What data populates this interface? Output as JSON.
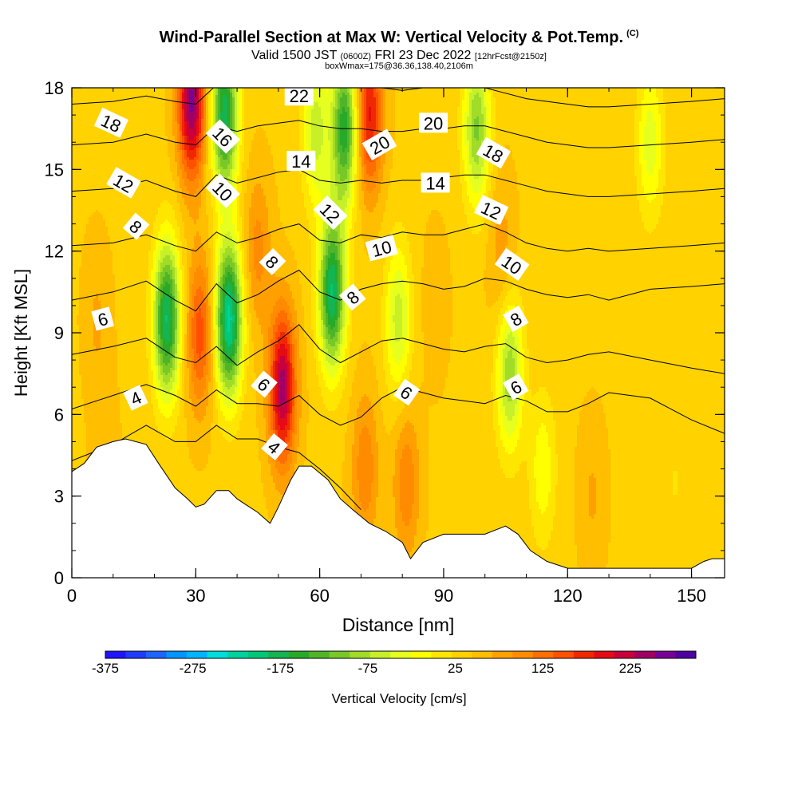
{
  "chart_data": {
    "type": "heatmap",
    "title": "Wind-Parallel Section at Max W: Vertical Velocity & Pot.Temp.",
    "title_mark": "(C)",
    "subtitle": {
      "valid": "Valid 1500 JST",
      "utc": "(0600Z)",
      "date": "FRI 23 Dec 2022",
      "forecast": "[12hrFcst@2150z]"
    },
    "note": "boxWmax=175@36.36,138.40,2106m",
    "xlabel": "Distance [nm]",
    "ylabel": "Height [Kft MSL]",
    "xlim": [
      0,
      158
    ],
    "ylim": [
      0,
      18
    ],
    "xticks": [
      0,
      30,
      60,
      90,
      120,
      150
    ],
    "yticks": [
      0,
      3,
      6,
      9,
      12,
      15,
      18
    ],
    "colorbar": {
      "label": "Vertical Velocity [cm/s]",
      "tick_labels": [
        "-375",
        "-275",
        "-175",
        "-75",
        "25",
        "125",
        "225"
      ],
      "tick_values": [
        -375,
        -275,
        -175,
        -75,
        25,
        125,
        225
      ],
      "range": [
        -375,
        300
      ],
      "colors": [
        "#1e14ff",
        "#1e3cff",
        "#1e64ff",
        "#0096ff",
        "#00b4ff",
        "#00dcdc",
        "#00d2a0",
        "#00c878",
        "#14b450",
        "#28aa28",
        "#50b428",
        "#78c828",
        "#a0dc28",
        "#c8f028",
        "#e6ff1e",
        "#ffff00",
        "#ffe600",
        "#ffd200",
        "#ffbe00",
        "#ffa000",
        "#ff8c00",
        "#ff6e00",
        "#ff5000",
        "#f02800",
        "#e60a14",
        "#c8003c",
        "#a00064",
        "#780096",
        "#5000a0"
      ]
    },
    "terrain": {
      "distance_nm": [
        0,
        3,
        6,
        10,
        13,
        18,
        21,
        25,
        28,
        30,
        32,
        35,
        38,
        40,
        42,
        45,
        48,
        50,
        53,
        55,
        58,
        62,
        65,
        68,
        72,
        76,
        80,
        82,
        85,
        90,
        95,
        100,
        105,
        108,
        111,
        115,
        120,
        130,
        140,
        150,
        153,
        155,
        158
      ],
      "height_kft": [
        3.9,
        4.2,
        4.8,
        5.0,
        5.1,
        4.9,
        4.2,
        3.3,
        2.9,
        2.6,
        2.7,
        3.2,
        3.2,
        2.9,
        2.7,
        2.4,
        2.0,
        2.6,
        3.6,
        4.1,
        4.1,
        3.6,
        2.9,
        2.5,
        2.0,
        1.7,
        1.3,
        0.7,
        1.3,
        1.6,
        1.6,
        1.6,
        1.9,
        1.6,
        1.0,
        0.6,
        0.35,
        0.35,
        0.35,
        0.35,
        0.6,
        0.7,
        0.7
      ]
    },
    "w_features": [
      {
        "distance_nm": 6,
        "height_kft": 9.5,
        "w": 70
      },
      {
        "distance_nm": 8,
        "height_kft": 4.5,
        "w": 60
      },
      {
        "distance_nm": 16,
        "height_kft": 16.5,
        "w": 30
      },
      {
        "distance_nm": 23,
        "height_kft": 9.5,
        "w": -190
      },
      {
        "distance_nm": 29,
        "height_kft": 17.5,
        "w": 260
      },
      {
        "distance_nm": 31,
        "height_kft": 9.0,
        "w": 150
      },
      {
        "distance_nm": 38,
        "height_kft": 9.5,
        "w": -220
      },
      {
        "distance_nm": 37,
        "height_kft": 17.0,
        "w": -180
      },
      {
        "distance_nm": 45,
        "height_kft": 12.0,
        "w": 100
      },
      {
        "distance_nm": 51,
        "height_kft": 7.0,
        "w": 240
      },
      {
        "distance_nm": 59,
        "height_kft": 16.5,
        "w": -60
      },
      {
        "distance_nm": 63,
        "height_kft": 10.5,
        "w": -190
      },
      {
        "distance_nm": 66,
        "height_kft": 16.5,
        "w": -160
      },
      {
        "distance_nm": 72,
        "height_kft": 17.0,
        "w": 190
      },
      {
        "distance_nm": 71,
        "height_kft": 4.0,
        "w": 110
      },
      {
        "distance_nm": 79,
        "height_kft": 9.5,
        "w": -60
      },
      {
        "distance_nm": 81,
        "height_kft": 3.5,
        "w": 110
      },
      {
        "distance_nm": 88,
        "height_kft": 10.0,
        "w": 60
      },
      {
        "distance_nm": 98,
        "height_kft": 16.5,
        "w": -100
      },
      {
        "distance_nm": 104,
        "height_kft": 12.0,
        "w": 80
      },
      {
        "distance_nm": 106,
        "height_kft": 7.5,
        "w": -90
      },
      {
        "distance_nm": 114,
        "height_kft": 4.0,
        "w": -20
      },
      {
        "distance_nm": 126,
        "height_kft": 3.0,
        "w": 70
      },
      {
        "distance_nm": 140,
        "height_kft": 16.0,
        "w": -40
      },
      {
        "distance_nm": 148,
        "height_kft": 12.0,
        "w": 30
      },
      {
        "distance_nm": 146,
        "height_kft": 3.5,
        "w": 20
      }
    ],
    "theta_contours": {
      "units": "deg C",
      "x_nm": [
        0,
        10,
        18,
        25,
        30,
        35,
        40,
        45,
        50,
        55,
        60,
        65,
        70,
        75,
        80,
        85,
        90,
        95,
        100,
        105,
        110,
        115,
        120,
        125,
        130,
        140,
        150,
        158
      ],
      "levels": [
        {
          "value": 4,
          "height_kft": [
            4.3,
            4.9,
            5.6,
            5.0,
            5.0,
            5.6,
            5.1,
            5.1,
            4.8,
            4.6,
            4.0,
            3.3,
            2.5
          ]
        },
        {
          "value": 6,
          "height_kft": [
            6.2,
            6.7,
            7.1,
            6.7,
            6.3,
            6.9,
            6.4,
            6.4,
            6.3,
            6.7,
            6.0,
            5.6,
            5.9,
            6.6,
            7.0,
            6.8,
            6.6,
            6.5,
            6.4,
            6.7,
            6.5,
            6.1,
            6.1,
            6.4,
            6.8,
            6.6,
            5.8,
            5.3
          ]
        },
        {
          "value": 8,
          "height_kft": [
            8.2,
            8.5,
            8.8,
            8.1,
            7.9,
            8.5,
            7.8,
            8.3,
            8.7,
            9.3,
            8.4,
            7.9,
            8.3,
            8.7,
            8.8,
            8.6,
            8.4,
            8.3,
            8.5,
            8.6,
            8.1,
            7.9,
            8.0,
            8.2,
            8.3,
            8.0,
            7.7,
            7.5
          ]
        },
        {
          "value": 10,
          "height_kft": [
            10.2,
            10.5,
            10.9,
            10.2,
            9.8,
            10.8,
            10.1,
            10.4,
            10.9,
            11.3,
            10.5,
            10.2,
            10.6,
            10.8,
            10.9,
            10.8,
            10.6,
            10.7,
            11.0,
            10.9,
            10.6,
            10.4,
            10.3,
            10.4,
            10.2,
            10.6,
            10.7,
            10.8
          ]
        },
        {
          "value": 12,
          "height_kft": [
            12.2,
            12.3,
            12.6,
            12.2,
            12.0,
            12.7,
            12.3,
            12.5,
            12.8,
            13.0,
            12.4,
            12.3,
            12.6,
            12.5,
            12.7,
            12.6,
            12.6,
            12.8,
            13.0,
            12.7,
            12.3,
            12.1,
            12.0,
            12.1,
            12.0,
            12.1,
            12.2,
            12.3
          ]
        },
        {
          "value": 14,
          "height_kft": [
            14.2,
            14.3,
            14.6,
            14.2,
            14.0,
            14.8,
            14.5,
            14.7,
            14.9,
            15.0,
            14.6,
            14.5,
            14.6,
            14.5,
            14.6,
            14.6,
            14.7,
            14.8,
            14.8,
            14.6,
            14.4,
            14.2,
            14.1,
            14.0,
            14.0,
            14.1,
            14.2,
            14.3
          ]
        },
        {
          "value": 16,
          "height_kft": [
            15.9,
            16.0,
            16.3,
            16.0,
            15.9,
            16.6,
            16.4,
            16.6,
            16.7,
            16.8,
            16.6,
            16.5,
            16.5,
            16.4,
            16.4,
            16.5,
            16.5,
            16.6,
            16.6,
            16.4,
            16.2,
            16.0,
            15.9,
            15.8,
            15.8,
            15.9,
            16.0,
            16.1
          ]
        },
        {
          "value": 18,
          "height_kft": [
            17.4,
            17.5,
            17.7,
            17.5,
            17.4,
            18.1,
            18.0,
            18.1,
            18.2,
            18.2,
            18.2,
            18.1,
            18.1,
            18.0,
            17.9,
            18.0,
            18.0,
            18.1,
            18.0,
            17.8,
            17.6,
            17.5,
            17.4,
            17.3,
            17.3,
            17.4,
            17.5,
            17.6
          ]
        }
      ]
    },
    "contour_labels": [
      {
        "text": "18",
        "x_nm": 9.5,
        "y_kft": 16.7,
        "angle": 25
      },
      {
        "text": "12",
        "x_nm": 12.5,
        "y_kft": 14.5,
        "angle": 30
      },
      {
        "text": "8",
        "x_nm": 15.5,
        "y_kft": 12.9,
        "angle": 40
      },
      {
        "text": "6",
        "x_nm": 7.5,
        "y_kft": 9.5,
        "angle": -15
      },
      {
        "text": "4",
        "x_nm": 15.5,
        "y_kft": 6.6,
        "angle": -25
      },
      {
        "text": "16",
        "x_nm": 36.5,
        "y_kft": 16.2,
        "angle": 45
      },
      {
        "text": "10",
        "x_nm": 36.5,
        "y_kft": 14.2,
        "angle": 45
      },
      {
        "text": "8",
        "x_nm": 48.5,
        "y_kft": 11.6,
        "angle": 45
      },
      {
        "text": "6",
        "x_nm": 46.5,
        "y_kft": 7.1,
        "angle": 40
      },
      {
        "text": "4",
        "x_nm": 49.0,
        "y_kft": 4.8,
        "angle": 40
      },
      {
        "text": "22",
        "x_nm": 55.0,
        "y_kft": 17.7,
        "angle": 0
      },
      {
        "text": "14",
        "x_nm": 55.5,
        "y_kft": 15.3,
        "angle": 0
      },
      {
        "text": "12",
        "x_nm": 62.5,
        "y_kft": 13.4,
        "angle": 45
      },
      {
        "text": "8",
        "x_nm": 68.0,
        "y_kft": 10.3,
        "angle": -40
      },
      {
        "text": "20",
        "x_nm": 74.5,
        "y_kft": 15.9,
        "angle": -30
      },
      {
        "text": "10",
        "x_nm": 75.0,
        "y_kft": 12.1,
        "angle": -15
      },
      {
        "text": "6",
        "x_nm": 81.0,
        "y_kft": 6.8,
        "angle": 35
      },
      {
        "text": "20",
        "x_nm": 87.5,
        "y_kft": 16.7,
        "angle": 0
      },
      {
        "text": "14",
        "x_nm": 88.0,
        "y_kft": 14.5,
        "angle": 0
      },
      {
        "text": "18",
        "x_nm": 102.0,
        "y_kft": 15.6,
        "angle": 30
      },
      {
        "text": "12",
        "x_nm": 101.5,
        "y_kft": 13.5,
        "angle": 25
      },
      {
        "text": "10",
        "x_nm": 106.5,
        "y_kft": 11.5,
        "angle": 35
      },
      {
        "text": "8",
        "x_nm": 107.5,
        "y_kft": 9.5,
        "angle": -30
      },
      {
        "text": "6",
        "x_nm": 107.5,
        "y_kft": 7.0,
        "angle": -30
      }
    ],
    "grid": false,
    "legend": "colorbar-bottom"
  }
}
